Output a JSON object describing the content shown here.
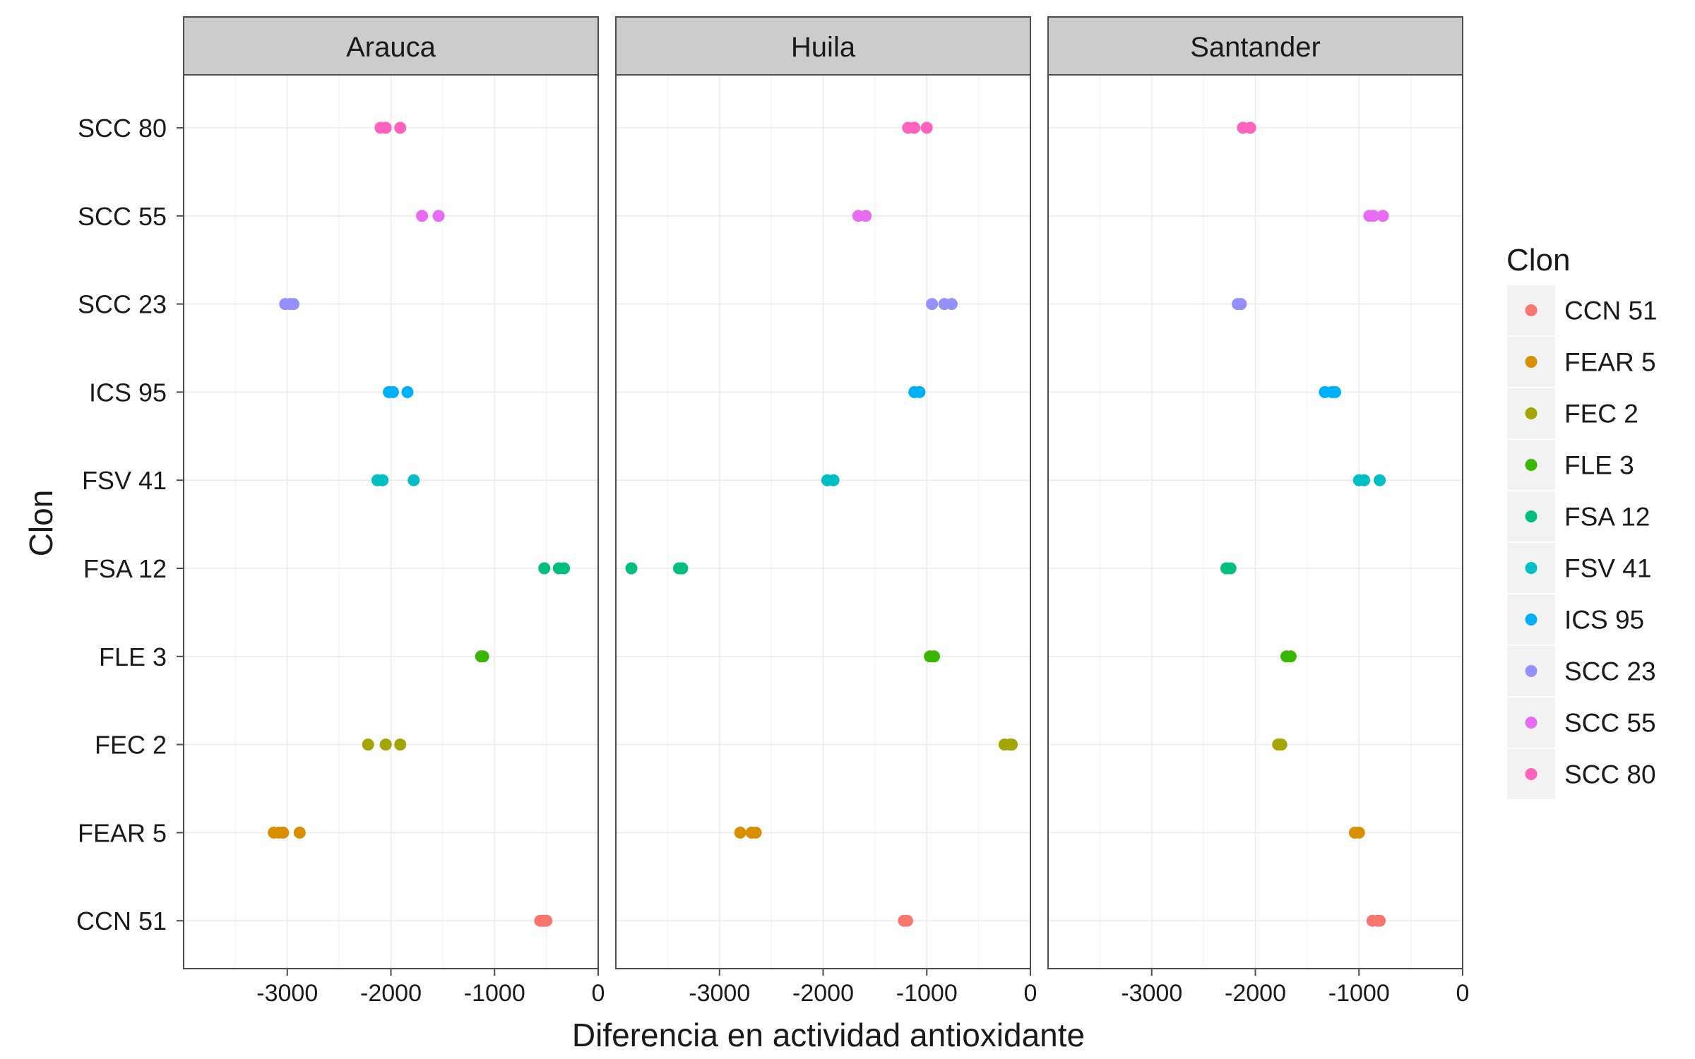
{
  "chart_data": {
    "type": "scatter",
    "facets": [
      "Arauca",
      "Huila",
      "Santander"
    ],
    "categories": [
      "CCN 51",
      "FEAR 5",
      "FEC 2",
      "FLE 3",
      "FSA 12",
      "FSV 41",
      "ICS 95",
      "SCC 23",
      "SCC 55",
      "SCC 80"
    ],
    "xlabel": "Diferencia en actividad antioxidante",
    "ylabel": "Clon",
    "xlim": [
      -4000,
      0
    ],
    "xticks": [
      -3000,
      -2000,
      -1000,
      0
    ],
    "xtick_labels": [
      "-3000",
      "-2000",
      "-1000",
      "0"
    ],
    "grid": true,
    "legend": {
      "title": "Clon",
      "position": "right",
      "entries": [
        "CCN 51",
        "FEAR 5",
        "FEC 2",
        "FLE 3",
        "FSA 12",
        "FSV 41",
        "ICS 95",
        "SCC 23",
        "SCC 55",
        "SCC 80"
      ]
    },
    "colors": {
      "CCN 51": "#F8766D",
      "FEAR 5": "#D89000",
      "FEC 2": "#A3A500",
      "FLE 3": "#39B600",
      "FSA 12": "#00BF7D",
      "FSV 41": "#00BFC4",
      "ICS 95": "#00B0F6",
      "SCC 23": "#9590FF",
      "SCC 55": "#E76BF3",
      "SCC 80": "#FF62BC"
    },
    "points": {
      "Arauca": {
        "CCN 51": [
          -560,
          -540,
          -520,
          -500
        ],
        "FEAR 5": [
          -3130,
          -3080,
          -3040,
          -2880
        ],
        "FEC 2": [
          -2220,
          -2050,
          -1910
        ],
        "FLE 3": [
          -1130,
          -1110
        ],
        "FSA 12": [
          -520,
          -380,
          -330
        ],
        "FSV 41": [
          -2130,
          -2080,
          -1780
        ],
        "ICS 95": [
          -2020,
          -1980,
          -1840
        ],
        "SCC 23": [
          -3020,
          -2970,
          -2940
        ],
        "SCC 55": [
          -1700,
          -1540
        ],
        "SCC 80": [
          -2100,
          -2050,
          -1910
        ]
      },
      "Huila": {
        "CCN 51": [
          -1220,
          -1190
        ],
        "FEAR 5": [
          -2800,
          -2690,
          -2650
        ],
        "FEC 2": [
          -250,
          -200,
          -180
        ],
        "FLE 3": [
          -970,
          -930
        ],
        "FSA 12": [
          -3850,
          -3390,
          -3360
        ],
        "FSV 41": [
          -1960,
          -1900
        ],
        "ICS 95": [
          -1120,
          -1070
        ],
        "SCC 23": [
          -950,
          -830,
          -760
        ],
        "SCC 55": [
          -1660,
          -1590
        ],
        "SCC 80": [
          -1180,
          -1120,
          -1000
        ]
      },
      "Santander": {
        "CCN 51": [
          -870,
          -820,
          -800
        ],
        "FEAR 5": [
          -1040,
          -1000
        ],
        "FEC 2": [
          -1780,
          -1750
        ],
        "FLE 3": [
          -1700,
          -1660
        ],
        "FSA 12": [
          -2280,
          -2240
        ],
        "FSV 41": [
          -1000,
          -950,
          -800
        ],
        "ICS 95": [
          -1330,
          -1260,
          -1230
        ],
        "SCC 23": [
          -2170,
          -2140
        ],
        "SCC 55": [
          -900,
          -860,
          -770
        ],
        "SCC 80": [
          -2120,
          -2050
        ]
      }
    }
  }
}
